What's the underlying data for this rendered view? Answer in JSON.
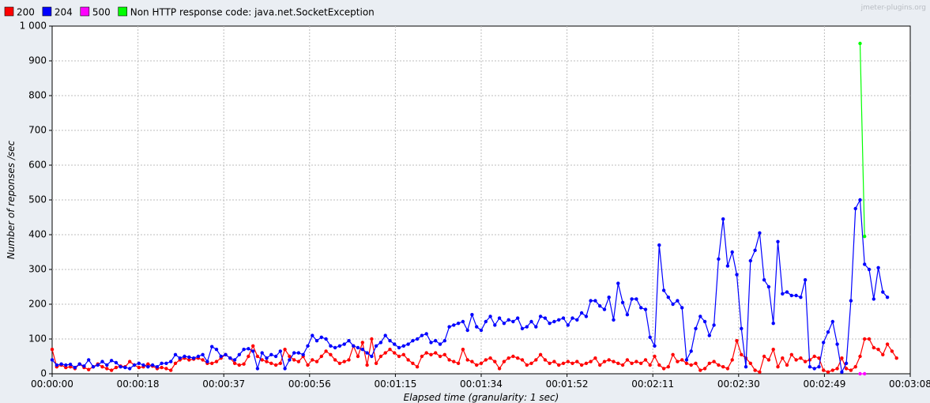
{
  "watermark": "jmeter-plugins.org",
  "legend": [
    {
      "label": "200",
      "color": "#ff0000"
    },
    {
      "label": "204",
      "color": "#0000ff"
    },
    {
      "label": "500",
      "color": "#ff00ff"
    },
    {
      "label": "Non HTTP response code: java.net.SocketException",
      "color": "#00ff00"
    }
  ],
  "chart_data": {
    "type": "line",
    "xlabel": "Elapsed time (granularity: 1 sec)",
    "ylabel": "Number of reponses /sec",
    "xlim": [
      0,
      188
    ],
    "ylim": [
      0,
      1000
    ],
    "y_ticks": [
      0,
      100,
      200,
      300,
      400,
      500,
      600,
      700,
      800,
      900,
      1000
    ],
    "y_tick_labels": [
      "0",
      "100",
      "200",
      "300",
      "400",
      "500",
      "600",
      "700",
      "800",
      "900",
      "1 000"
    ],
    "x_ticks": [
      0,
      18.8,
      37.6,
      56.4,
      75.2,
      94,
      112.8,
      131.6,
      150.4,
      169.2,
      188
    ],
    "x_tick_labels": [
      "00:00:00",
      "00:00:18",
      "00:00:37",
      "00:00:56",
      "00:01:15",
      "00:01:34",
      "00:01:52",
      "00:02:11",
      "00:02:30",
      "00:02:49",
      "00:03:08"
    ],
    "grid": true,
    "legend_position": "top-left",
    "series": [
      {
        "name": "200",
        "color": "#ff0000",
        "x_start": 0,
        "values": [
          70,
          20,
          25,
          18,
          20,
          15,
          28,
          18,
          12,
          20,
          28,
          20,
          15,
          10,
          18,
          22,
          20,
          35,
          25,
          18,
          20,
          28,
          22,
          15,
          18,
          15,
          10,
          30,
          40,
          45,
          40,
          42,
          45,
          40,
          30,
          30,
          35,
          45,
          55,
          45,
          30,
          25,
          28,
          50,
          80,
          50,
          40,
          35,
          30,
          25,
          30,
          70,
          50,
          40,
          35,
          50,
          25,
          40,
          35,
          50,
          65,
          55,
          40,
          30,
          35,
          40,
          80,
          50,
          90,
          25,
          100,
          30,
          50,
          60,
          70,
          60,
          50,
          55,
          40,
          30,
          20,
          50,
          60,
          55,
          60,
          50,
          55,
          40,
          35,
          30,
          70,
          40,
          35,
          25,
          30,
          40,
          45,
          35,
          15,
          35,
          45,
          50,
          45,
          40,
          25,
          30,
          40,
          55,
          40,
          30,
          35,
          25,
          30,
          35,
          30,
          35,
          25,
          30,
          35,
          45,
          25,
          35,
          40,
          35,
          30,
          25,
          40,
          30,
          35,
          30,
          40,
          25,
          50,
          25,
          15,
          20,
          55,
          35,
          40,
          30,
          25,
          30,
          10,
          15,
          30,
          35,
          25,
          20,
          15,
          40,
          95,
          55,
          45,
          30,
          10,
          5,
          50,
          40,
          70,
          20,
          45,
          25,
          55,
          40,
          45,
          35,
          40,
          50,
          45,
          10,
          5,
          10,
          15,
          45,
          15,
          10,
          20,
          50,
          100,
          100,
          75,
          70,
          55,
          85,
          65,
          45
        ]
      },
      {
        "name": "204",
        "color": "#0000ff",
        "x_start": 0,
        "values": [
          40,
          25,
          28,
          25,
          27,
          18,
          28,
          22,
          40,
          20,
          25,
          35,
          25,
          38,
          32,
          20,
          18,
          15,
          25,
          30,
          25,
          20,
          25,
          20,
          30,
          30,
          35,
          55,
          45,
          50,
          48,
          45,
          50,
          55,
          35,
          78,
          70,
          50,
          55,
          45,
          40,
          55,
          70,
          72,
          65,
          15,
          60,
          45,
          55,
          50,
          65,
          15,
          40,
          60,
          60,
          55,
          80,
          110,
          95,
          105,
          100,
          80,
          75,
          80,
          85,
          95,
          80,
          75,
          70,
          60,
          50,
          80,
          90,
          110,
          95,
          85,
          75,
          80,
          85,
          95,
          100,
          110,
          115,
          90,
          95,
          85,
          95,
          135,
          140,
          145,
          150,
          125,
          170,
          135,
          125,
          150,
          165,
          140,
          160,
          145,
          155,
          150,
          160,
          130,
          135,
          150,
          135,
          165,
          160,
          145,
          150,
          155,
          160,
          140,
          160,
          155,
          175,
          165,
          210,
          210,
          195,
          185,
          220,
          155,
          260,
          205,
          170,
          215,
          215,
          190,
          185,
          105,
          80,
          370,
          240,
          220,
          200,
          210,
          190,
          40,
          65,
          130,
          165,
          150,
          110,
          140,
          330,
          445,
          310,
          350,
          285,
          130,
          20,
          325,
          355,
          405,
          270,
          250,
          145,
          380,
          230,
          235,
          225,
          225,
          220,
          270,
          20,
          15,
          20,
          90,
          120,
          150,
          85,
          5,
          30,
          210,
          475,
          500,
          315,
          300,
          215,
          305,
          235,
          220
        ]
      },
      {
        "name": "500",
        "color": "#ff00ff",
        "x_start": 177,
        "values": [
          0,
          0
        ]
      },
      {
        "name": "Non HTTP response code: java.net.SocketException",
        "color": "#00ff00",
        "x_start": 177,
        "values": [
          950,
          395
        ]
      }
    ]
  }
}
